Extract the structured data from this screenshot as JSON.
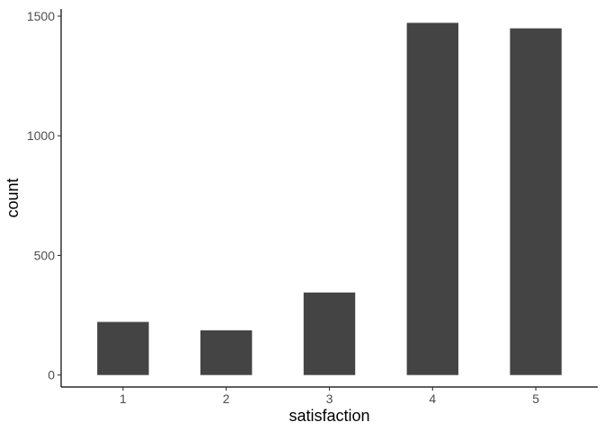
{
  "chart_data": {
    "type": "bar",
    "title": "",
    "xlabel": "satisfaction",
    "ylabel": "count",
    "categories": [
      "1",
      "2",
      "3",
      "4",
      "5"
    ],
    "values": [
      222,
      187,
      345,
      1472,
      1449
    ],
    "ylim": [
      -50,
      1530
    ],
    "yticks": [
      0,
      500,
      1000,
      1500
    ],
    "ytick_labels": [
      "0",
      "500",
      "1000",
      "1500"
    ],
    "grid": false,
    "legend": "none",
    "bar_color": "#444444"
  }
}
